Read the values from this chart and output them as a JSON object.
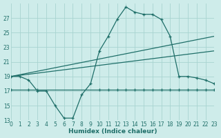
{
  "xlabel": "Humidex (Indice chaleur)",
  "background_color": "#ceecea",
  "grid_color": "#a8d4d0",
  "line_color": "#1e6e68",
  "xlim": [
    0,
    23
  ],
  "ylim": [
    13,
    29
  ],
  "yticks": [
    13,
    15,
    17,
    19,
    21,
    23,
    25,
    27
  ],
  "xticks": [
    0,
    1,
    2,
    3,
    4,
    5,
    6,
    7,
    8,
    9,
    10,
    11,
    12,
    13,
    14,
    15,
    16,
    17,
    18,
    19,
    20,
    21,
    22,
    23
  ],
  "line1_x": [
    0,
    1,
    2,
    3,
    4,
    5,
    6,
    7,
    8,
    9,
    10,
    11,
    12,
    13,
    14,
    15,
    16,
    17,
    18,
    19,
    20,
    21,
    22,
    23
  ],
  "line1_y": [
    19.0,
    19.0,
    18.5,
    17.0,
    17.0,
    15.0,
    13.3,
    13.3,
    16.5,
    18.0,
    22.5,
    24.5,
    26.8,
    28.5,
    27.8,
    27.5,
    27.5,
    26.8,
    24.5,
    19.0,
    19.0,
    18.8,
    18.5,
    18.0
  ],
  "line2_x": [
    0,
    2,
    3,
    10,
    11,
    12,
    13,
    14,
    15,
    16,
    17,
    18,
    19,
    20,
    21,
    22,
    23
  ],
  "line2_y": [
    17.2,
    17.2,
    17.2,
    17.2,
    17.2,
    17.2,
    17.2,
    17.2,
    17.2,
    17.2,
    17.2,
    17.2,
    17.2,
    17.2,
    17.2,
    17.2,
    17.2
  ],
  "line3_x": [
    0,
    23
  ],
  "line3_y": [
    19.0,
    24.5
  ],
  "line4_x": [
    0,
    23
  ],
  "line4_y": [
    19.0,
    22.5
  ]
}
